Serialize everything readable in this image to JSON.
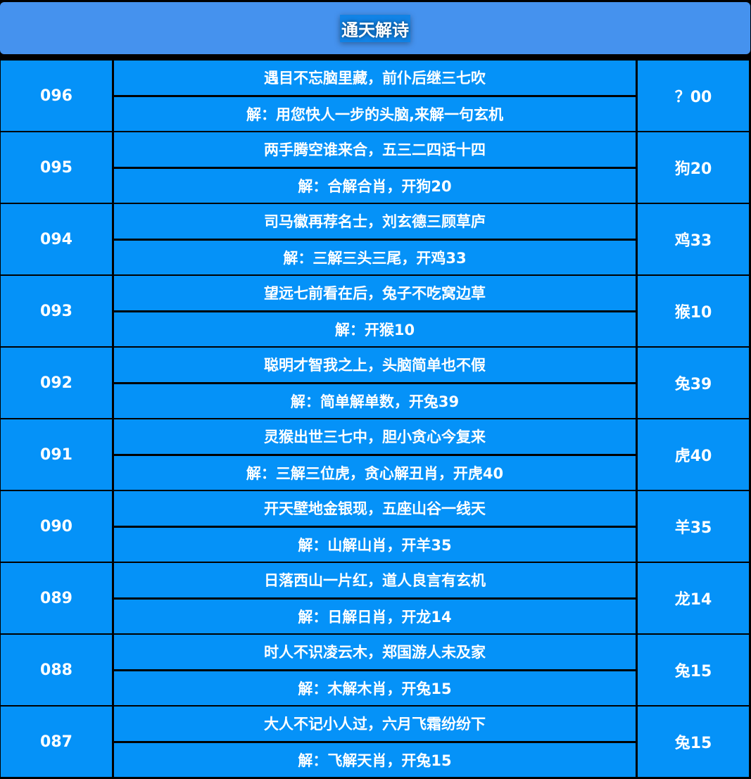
{
  "header": {
    "title": "通天解诗"
  },
  "colors": {
    "header_bg": "#4592ee",
    "cell_bg": "#0592f8",
    "border": "#000000",
    "text": "#ffffff"
  },
  "rows": [
    {
      "issue": "096",
      "poem": "遇目不忘脑里藏，前仆后继三七吹",
      "answer": "解：用您快人一步的头脑,来解一句玄机",
      "result": "？00"
    },
    {
      "issue": "095",
      "poem": "两手腾空谁来合，五三二四话十四",
      "answer": "解：合解合肖，开狗20",
      "result": "狗20"
    },
    {
      "issue": "094",
      "poem": "司马徽再荐名士，刘玄德三顾草庐",
      "answer": "解：三解三头三尾，开鸡33",
      "result": "鸡33"
    },
    {
      "issue": "093",
      "poem": "望远七前看在后，兔子不吃窝边草",
      "answer": "解：开猴10",
      "result": "猴10"
    },
    {
      "issue": "092",
      "poem": "聪明才智我之上，头脑简单也不假",
      "answer": "解：简单解单数，开兔39",
      "result": "兔39"
    },
    {
      "issue": "091",
      "poem": "灵猴出世三七中，胆小贪心今复来",
      "answer": "解：三解三位虎，贪心解丑肖，开虎40",
      "result": "虎40"
    },
    {
      "issue": "090",
      "poem": "开天壁地金银现，五座山谷一线天",
      "answer": "解：山解山肖，开羊35",
      "result": "羊35"
    },
    {
      "issue": "089",
      "poem": "日落西山一片红，道人良言有玄机",
      "answer": "解：日解日肖，开龙14",
      "result": "龙14"
    },
    {
      "issue": "088",
      "poem": "时人不识凌云木，郑国游人未及家",
      "answer": "解：木解木肖，开兔15",
      "result": "兔15"
    },
    {
      "issue": "087",
      "poem": "大人不记小人过，六月飞霜纷纷下",
      "answer": "解：飞解天肖，开兔15",
      "result": "兔15"
    }
  ]
}
